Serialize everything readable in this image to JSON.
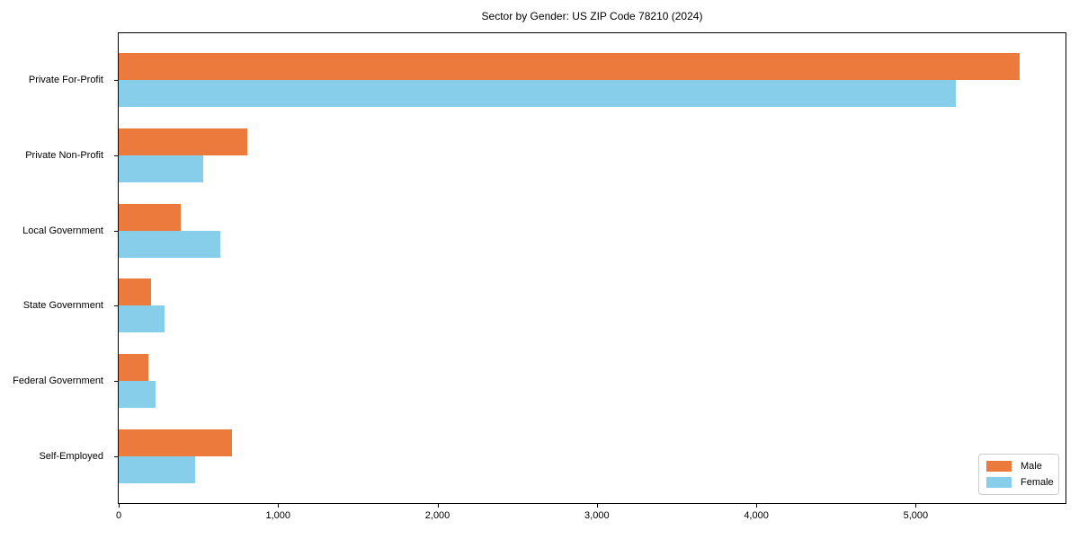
{
  "chart_data": {
    "type": "bar",
    "orientation": "horizontal",
    "title": "Sector by Gender: US ZIP Code 78210 (2024)",
    "categories": [
      "Private For-Profit",
      "Private Non-Profit",
      "Local Government",
      "State Government",
      "Federal Government",
      "Self-Employed"
    ],
    "series": [
      {
        "name": "Male",
        "color": "#EC7A3C",
        "values": [
          5650,
          805,
          390,
          205,
          185,
          710
        ]
      },
      {
        "name": "Female",
        "color": "#87CEEB",
        "values": [
          5250,
          530,
          640,
          290,
          230,
          480
        ]
      }
    ],
    "xlabel": "",
    "ylabel": "",
    "xlim": [
      0,
      5940
    ],
    "xticks": {
      "values": [
        0,
        1000,
        2000,
        3000,
        4000,
        5000
      ],
      "labels": [
        "0",
        "1,000",
        "2,000",
        "3,000",
        "4,000",
        "5,000"
      ]
    },
    "grid": false,
    "frame": true,
    "legend": {
      "position": "lower right",
      "entries": [
        "Male",
        "Female"
      ]
    }
  }
}
